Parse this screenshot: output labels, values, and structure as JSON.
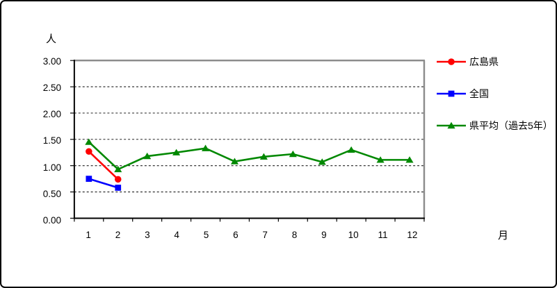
{
  "page": {
    "background": "#ffffff",
    "border_color": "#000000",
    "text_color": "#000000",
    "gridline_color": "#000000",
    "plot_frame_gray": "#8c8c8c"
  },
  "chart_data": {
    "type": "line",
    "title": "",
    "ylabel": "人",
    "xlabel": "月",
    "ylim": [
      0,
      3.0
    ],
    "ytick_step": 0.5,
    "ytick_labels": [
      "3.00",
      "2.50",
      "2.00",
      "1.50",
      "1.00",
      "0.50",
      "0.00"
    ],
    "categories": [
      "1",
      "2",
      "3",
      "4",
      "5",
      "6",
      "7",
      "8",
      "9",
      "10",
      "11",
      "12"
    ],
    "grid": "horizontal, dashed black",
    "legend_position": "right-outside",
    "series": [
      {
        "name": "広島県",
        "color": "#ff0000",
        "marker": "circle",
        "values": [
          1.27,
          0.74,
          null,
          null,
          null,
          null,
          null,
          null,
          null,
          null,
          null,
          null
        ]
      },
      {
        "name": "全国",
        "color": "#0000ff",
        "marker": "square",
        "values": [
          0.75,
          0.58,
          null,
          null,
          null,
          null,
          null,
          null,
          null,
          null,
          null,
          null
        ]
      },
      {
        "name": "県平均（過去5年）",
        "color": "#008800",
        "marker": "triangle",
        "values": [
          1.45,
          0.93,
          1.18,
          1.25,
          1.33,
          1.08,
          1.17,
          1.22,
          1.07,
          1.3,
          1.11,
          1.11
        ]
      }
    ]
  }
}
